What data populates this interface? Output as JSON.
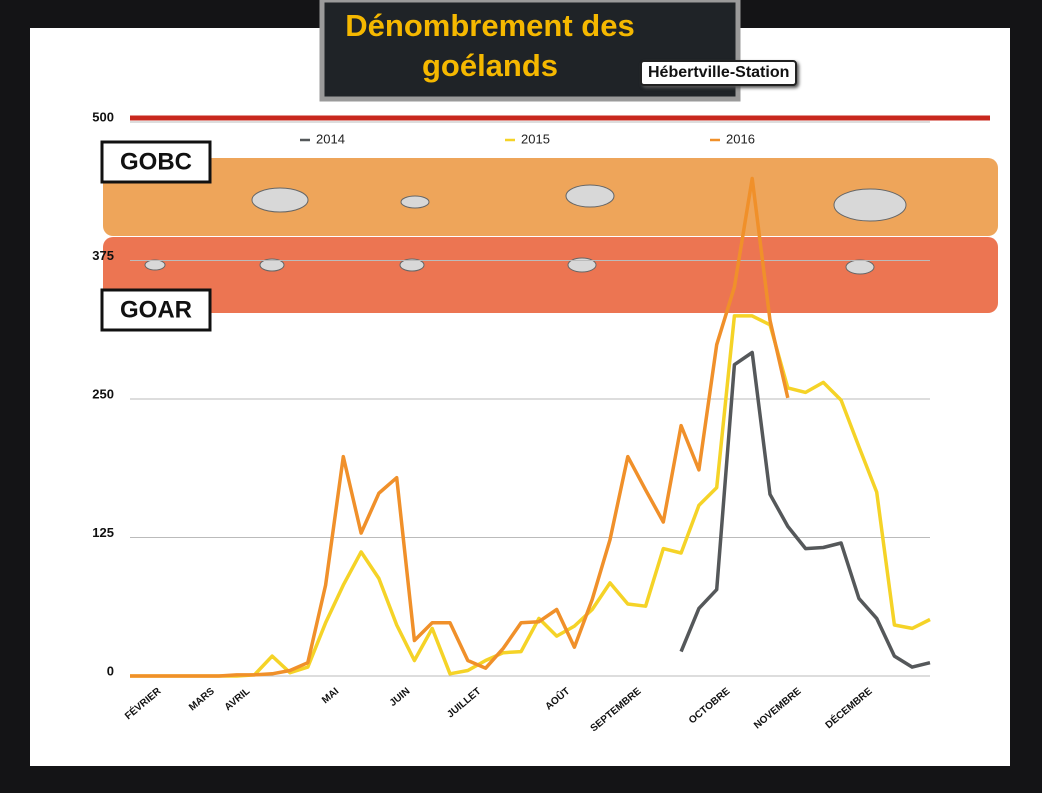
{
  "chart_data": {
    "type": "line",
    "title": "Dénombrement des goélands",
    "subtitle": "Hébertville-Station",
    "bands": [
      {
        "label": "GOBC"
      },
      {
        "label": "GOAR"
      }
    ],
    "categories": [
      null,
      "FÉVRIER",
      null,
      null,
      "MARS",
      null,
      "AVRIL",
      null,
      null,
      null,
      null,
      "MAI",
      null,
      null,
      null,
      "JUIN",
      null,
      null,
      null,
      "JUILLET",
      null,
      null,
      null,
      null,
      "AOÛT",
      null,
      null,
      null,
      "SEPTEMBRE",
      null,
      null,
      null,
      null,
      "OCTOBRE",
      null,
      null,
      null,
      "NOVEMBRE",
      null,
      null,
      null,
      "DÉCEMBRE",
      null,
      null,
      null,
      null
    ],
    "series": [
      {
        "name": "2014",
        "color": "#55585a",
        "values": [
          null,
          null,
          null,
          null,
          null,
          null,
          null,
          null,
          null,
          null,
          null,
          null,
          null,
          null,
          null,
          null,
          null,
          null,
          null,
          null,
          null,
          null,
          null,
          null,
          null,
          null,
          null,
          null,
          null,
          null,
          null,
          22,
          61,
          78,
          281,
          292,
          164,
          135,
          115,
          116,
          120,
          70,
          52,
          18,
          8,
          12
        ]
      },
      {
        "name": "2015",
        "color": "#f5d327",
        "values": [
          0,
          0,
          0,
          0,
          0,
          0,
          0,
          1,
          18,
          3,
          8,
          48,
          82,
          112,
          88,
          46,
          14,
          43,
          2,
          5,
          14,
          21,
          22,
          52,
          36,
          45,
          60,
          84,
          65,
          63,
          115,
          111,
          154,
          170,
          325,
          325,
          317,
          260,
          256,
          265,
          249,
          207,
          166,
          46,
          43,
          51
        ]
      },
      {
        "name": "2016",
        "color": "#f0902a",
        "values": [
          0,
          0,
          0,
          0,
          0,
          0,
          1,
          1,
          2,
          5,
          12,
          82,
          198,
          129,
          165,
          179,
          32,
          48,
          48,
          14,
          7,
          25,
          48,
          49,
          60,
          26,
          69,
          123,
          198,
          168,
          139,
          226,
          186,
          299,
          351,
          449,
          321,
          251,
          null,
          null,
          null,
          null,
          null,
          null,
          null,
          null
        ]
      }
    ],
    "ylim": [
      0,
      500
    ],
    "yticks": [
      0,
      125,
      250,
      375,
      500
    ],
    "grid": true,
    "legend": "top"
  }
}
